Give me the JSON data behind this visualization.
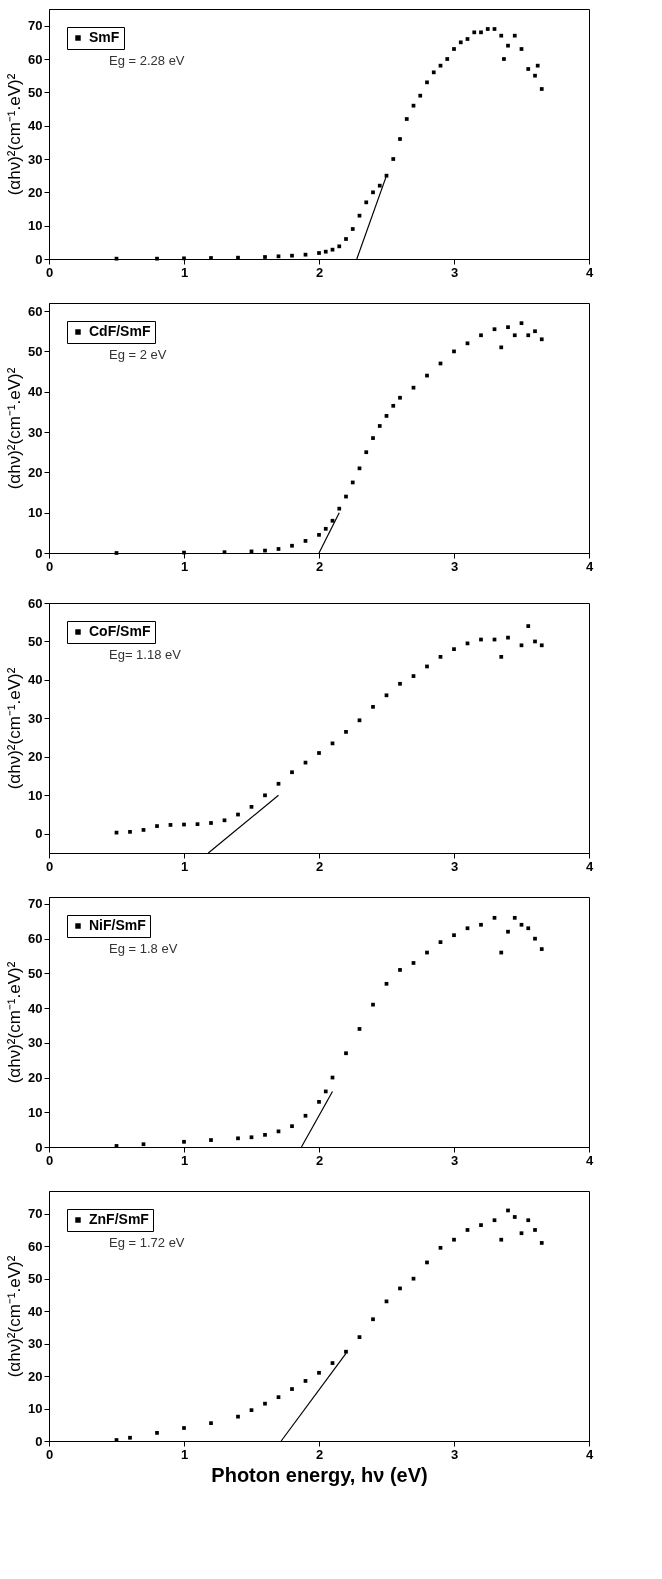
{
  "chart_data": [
    {
      "type": "scatter",
      "ylabel": "(αhν)²(cm⁻¹.eV)²",
      "xlim": [
        0,
        4
      ],
      "xticks": [
        0,
        1,
        2,
        3,
        4
      ],
      "ylim": [
        0,
        75
      ],
      "yticks": [
        0,
        10,
        20,
        30,
        40,
        50,
        60,
        70
      ],
      "legend": "top left",
      "grid": false,
      "annotations": [
        "Eg = 2.28 eV"
      ],
      "series": [
        {
          "name": "SmF",
          "color": "#000000",
          "marker": "square",
          "x": [
            0.5,
            0.8,
            1.0,
            1.2,
            1.4,
            1.6,
            1.7,
            1.8,
            1.9,
            2.0,
            2.05,
            2.1,
            2.15,
            2.2,
            2.25,
            2.3,
            2.35,
            2.4,
            2.45,
            2.5,
            2.55,
            2.6,
            2.65,
            2.7,
            2.75,
            2.8,
            2.85,
            2.9,
            2.95,
            3.0,
            3.05,
            3.1,
            3.15,
            3.2,
            3.25,
            3.3,
            3.35,
            3.37,
            3.4,
            3.45,
            3.5,
            3.55,
            3.6,
            3.62,
            3.65
          ],
          "values": [
            0.1,
            0.1,
            0.2,
            0.3,
            0.4,
            0.6,
            0.8,
            1.0,
            1.3,
            1.8,
            2.2,
            2.8,
            3.8,
            6,
            9,
            13,
            17,
            20,
            22,
            25,
            30,
            36,
            42,
            46,
            49,
            53,
            56,
            58,
            60,
            63,
            65,
            66,
            68,
            68,
            69,
            69,
            67,
            60,
            64,
            67,
            63,
            57,
            55,
            58,
            51
          ]
        },
        {
          "type": "line",
          "color": "#000000",
          "x": [
            2.28,
            2.5
          ],
          "values": [
            0,
            25
          ]
        }
      ]
    },
    {
      "type": "scatter",
      "ylabel": "(αhν)²(cm⁻¹.eV)²",
      "xlim": [
        0,
        4
      ],
      "xticks": [
        0,
        1,
        2,
        3,
        4
      ],
      "ylim": [
        0,
        62
      ],
      "yticks": [
        0,
        10,
        20,
        30,
        40,
        50,
        60
      ],
      "legend": "top left",
      "grid": false,
      "annotations": [
        "Eg = 2 eV"
      ],
      "series": [
        {
          "name": "CdF/SmF",
          "color": "#000000",
          "marker": "square",
          "x": [
            0.5,
            1.0,
            1.3,
            1.5,
            1.6,
            1.7,
            1.8,
            1.9,
            2.0,
            2.05,
            2.1,
            2.15,
            2.2,
            2.25,
            2.3,
            2.35,
            2.4,
            2.45,
            2.5,
            2.55,
            2.6,
            2.7,
            2.8,
            2.9,
            3.0,
            3.1,
            3.2,
            3.3,
            3.35,
            3.4,
            3.45,
            3.5,
            3.55,
            3.6,
            3.65
          ],
          "values": [
            0,
            0.1,
            0.2,
            0.4,
            0.6,
            1.0,
            1.8,
            3,
            4.5,
            6,
            8,
            11,
            14,
            17.5,
            21,
            25,
            28.5,
            31.5,
            34,
            36.5,
            38.5,
            41,
            44,
            47,
            50,
            52,
            54,
            55.5,
            51,
            56,
            54,
            57,
            54,
            55,
            53
          ]
        },
        {
          "type": "line",
          "color": "#000000",
          "x": [
            2.0,
            2.15
          ],
          "values": [
            0,
            10
          ]
        }
      ]
    },
    {
      "type": "scatter",
      "ylabel": "(αhν)²(cm⁻¹.eV)²",
      "xlim": [
        0,
        4
      ],
      "xticks": [
        0,
        1,
        2,
        3,
        4
      ],
      "ylim": [
        -5,
        60
      ],
      "yticks": [
        0,
        10,
        20,
        30,
        40,
        50,
        60
      ],
      "legend": "top left",
      "grid": false,
      "annotations": [
        "Eg= 1.18 eV"
      ],
      "series": [
        {
          "name": "CoF/SmF",
          "color": "#000000",
          "marker": "square",
          "x": [
            0.5,
            0.6,
            0.7,
            0.8,
            0.9,
            1.0,
            1.1,
            1.2,
            1.3,
            1.4,
            1.5,
            1.6,
            1.7,
            1.8,
            1.9,
            2.0,
            2.1,
            2.2,
            2.3,
            2.4,
            2.5,
            2.6,
            2.7,
            2.8,
            2.9,
            3.0,
            3.1,
            3.2,
            3.3,
            3.35,
            3.4,
            3.5,
            3.55,
            3.6,
            3.65
          ],
          "values": [
            0.3,
            0.5,
            1,
            2,
            2.3,
            2.4,
            2.5,
            2.8,
            3.5,
            5,
            7,
            10,
            13,
            16,
            18.5,
            21,
            23.5,
            26.5,
            29.5,
            33,
            36,
            39,
            41,
            43.5,
            46,
            48,
            49.5,
            50.5,
            50.5,
            46,
            51,
            49,
            54,
            50,
            49
          ]
        },
        {
          "type": "line",
          "color": "#000000",
          "x": [
            1.18,
            1.7
          ],
          "values": [
            -5,
            10
          ]
        }
      ]
    },
    {
      "type": "scatter",
      "ylabel": "(αhν)²(cm⁻¹.eV)²",
      "xlim": [
        0,
        4
      ],
      "xticks": [
        0,
        1,
        2,
        3,
        4
      ],
      "ylim": [
        0,
        72
      ],
      "yticks": [
        0,
        10,
        20,
        30,
        40,
        50,
        60,
        70
      ],
      "legend": "top left",
      "grid": false,
      "annotations": [
        "Eg = 1.8 eV"
      ],
      "series": [
        {
          "name": "NiF/SmF",
          "color": "#000000",
          "marker": "square",
          "x": [
            0.5,
            0.7,
            1.0,
            1.2,
            1.4,
            1.5,
            1.6,
            1.7,
            1.8,
            1.9,
            2.0,
            2.05,
            2.1,
            2.2,
            2.3,
            2.4,
            2.5,
            2.6,
            2.7,
            2.8,
            2.9,
            3.0,
            3.1,
            3.2,
            3.3,
            3.35,
            3.4,
            3.45,
            3.5,
            3.55,
            3.6,
            3.65
          ],
          "values": [
            0.3,
            0.8,
            1.5,
            2,
            2.5,
            2.8,
            3.5,
            4.5,
            6,
            9,
            13,
            16,
            20,
            27,
            34,
            41,
            47,
            51,
            53,
            56,
            59,
            61,
            63,
            64,
            66,
            56,
            62,
            66,
            64,
            63,
            60,
            57
          ]
        },
        {
          "type": "line",
          "color": "#000000",
          "x": [
            1.87,
            2.1
          ],
          "values": [
            0,
            16
          ]
        }
      ]
    },
    {
      "type": "scatter",
      "xlabel": "Photon energy, hν (eV)",
      "ylabel": "(αhν)²(cm⁻¹.eV)²",
      "xlim": [
        0,
        4
      ],
      "xticks": [
        0,
        1,
        2,
        3,
        4
      ],
      "ylim": [
        0,
        77
      ],
      "yticks": [
        0,
        10,
        20,
        30,
        40,
        50,
        60,
        70
      ],
      "legend": "top left",
      "grid": false,
      "annotations": [
        "Eg = 1.72 eV"
      ],
      "series": [
        {
          "name": "ZnF/SmF",
          "color": "#000000",
          "marker": "square",
          "x": [
            0.5,
            0.6,
            0.8,
            1.0,
            1.2,
            1.4,
            1.5,
            1.6,
            1.7,
            1.8,
            1.9,
            2.0,
            2.1,
            2.2,
            2.3,
            2.4,
            2.5,
            2.6,
            2.7,
            2.8,
            2.9,
            3.0,
            3.1,
            3.2,
            3.3,
            3.35,
            3.4,
            3.45,
            3.5,
            3.55,
            3.6,
            3.65
          ],
          "values": [
            0.3,
            1,
            2.5,
            4,
            5.5,
            7.5,
            9.5,
            11.5,
            13.5,
            16,
            18.5,
            21,
            24,
            27.5,
            32,
            37.5,
            43,
            47,
            50,
            55,
            59.5,
            62,
            65,
            66.5,
            68,
            62,
            71,
            69,
            64,
            68,
            65,
            61
          ]
        },
        {
          "type": "line",
          "color": "#000000",
          "x": [
            1.72,
            2.2
          ],
          "values": [
            0,
            27
          ]
        }
      ]
    }
  ]
}
